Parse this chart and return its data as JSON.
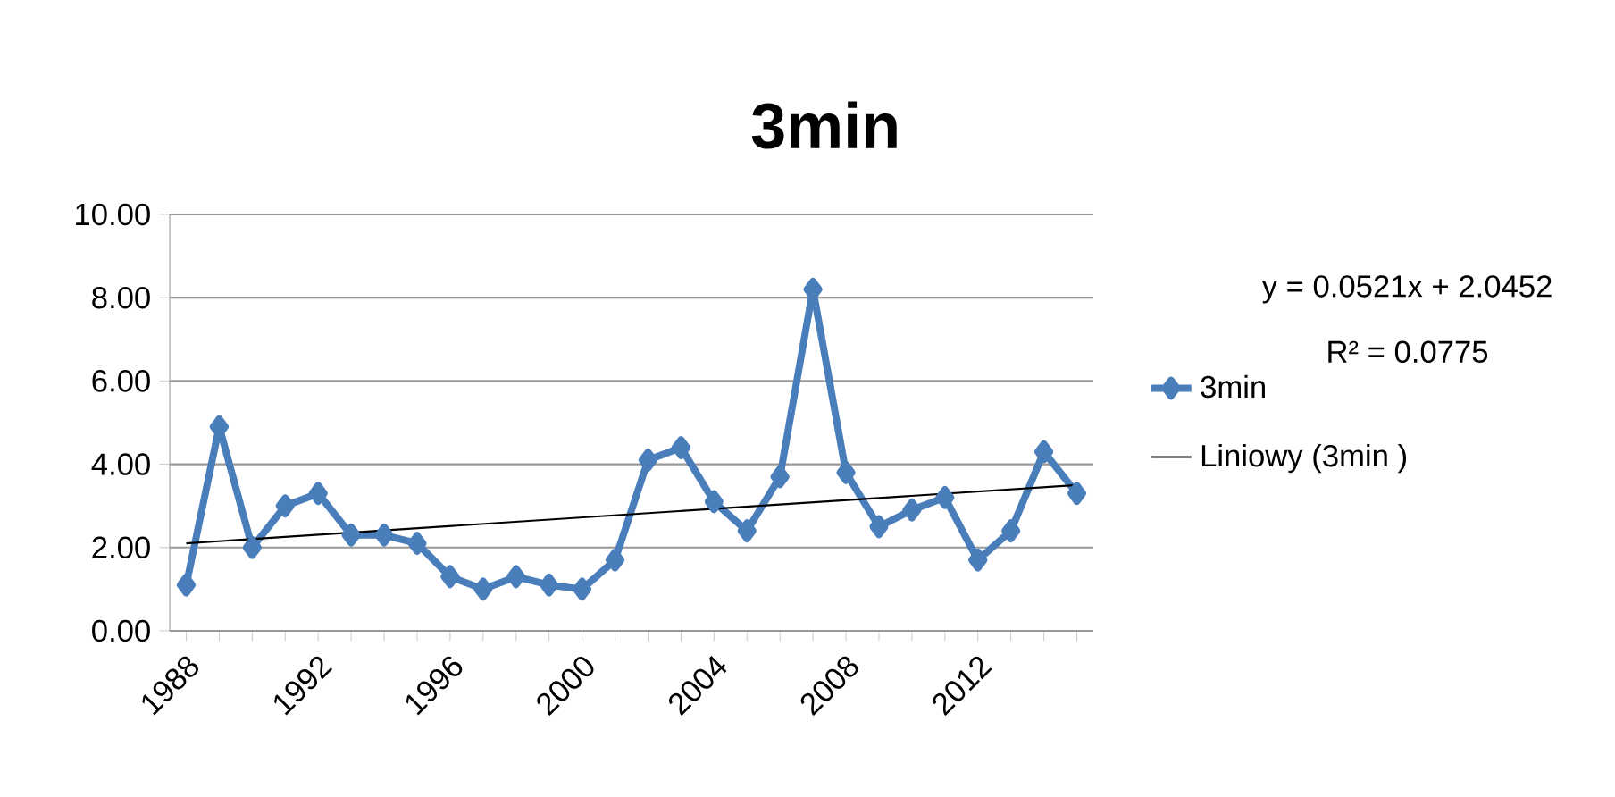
{
  "chart_data": {
    "type": "line",
    "title": "3min",
    "x": [
      1988,
      1989,
      1990,
      1991,
      1992,
      1993,
      1994,
      1995,
      1996,
      1997,
      1998,
      1999,
      2000,
      2001,
      2002,
      2003,
      2004,
      2005,
      2006,
      2007,
      2008,
      2009,
      2010,
      2011,
      2012,
      2013,
      2014,
      2015
    ],
    "series": [
      {
        "name": "3min",
        "color": "#4a7ebb",
        "values": [
          1.1,
          4.9,
          2.0,
          3.0,
          3.3,
          2.3,
          2.3,
          2.1,
          1.3,
          1.0,
          1.3,
          1.1,
          1.0,
          1.7,
          4.1,
          4.4,
          3.1,
          2.4,
          3.7,
          8.2,
          3.8,
          2.5,
          2.9,
          3.2,
          1.7,
          2.4,
          4.3,
          3.3
        ]
      },
      {
        "name": "Liniowy (3min )",
        "color": "#000000",
        "marker": "none",
        "x": [
          1988,
          2015
        ],
        "values": [
          2.1,
          3.5
        ]
      }
    ],
    "xlim": [
      1987.5,
      2015.5
    ],
    "xticks": [
      {
        "value": 1988,
        "label": "1988"
      },
      {
        "value": 1989,
        "label": null
      },
      {
        "value": 1990,
        "label": null
      },
      {
        "value": 1991,
        "label": null
      },
      {
        "value": 1992,
        "label": "1992"
      },
      {
        "value": 1993,
        "label": null
      },
      {
        "value": 1994,
        "label": null
      },
      {
        "value": 1995,
        "label": null
      },
      {
        "value": 1996,
        "label": "1996"
      },
      {
        "value": 1997,
        "label": null
      },
      {
        "value": 1998,
        "label": null
      },
      {
        "value": 1999,
        "label": null
      },
      {
        "value": 2000,
        "label": "2000"
      },
      {
        "value": 2001,
        "label": null
      },
      {
        "value": 2002,
        "label": null
      },
      {
        "value": 2003,
        "label": null
      },
      {
        "value": 2004,
        "label": "2004"
      },
      {
        "value": 2005,
        "label": null
      },
      {
        "value": 2006,
        "label": null
      },
      {
        "value": 2007,
        "label": null
      },
      {
        "value": 2008,
        "label": "2008"
      },
      {
        "value": 2009,
        "label": null
      },
      {
        "value": 2010,
        "label": null
      },
      {
        "value": 2011,
        "label": null
      },
      {
        "value": 2012,
        "label": "2012"
      },
      {
        "value": 2013,
        "label": null
      },
      {
        "value": 2014,
        "label": null
      },
      {
        "value": 2015,
        "label": null
      }
    ],
    "ylim": [
      0,
      10
    ],
    "yticks": [
      {
        "value": 0,
        "label": "0.00"
      },
      {
        "value": 2,
        "label": "2.00"
      },
      {
        "value": 4,
        "label": "4.00"
      },
      {
        "value": 6,
        "label": "6.00"
      },
      {
        "value": 8,
        "label": "8.00"
      },
      {
        "value": 10,
        "label": "10.00"
      }
    ],
    "grid": "y",
    "legend": "right",
    "marker": "diamond",
    "line_style": "solid",
    "annotations": [
      "y = 0.0521x + 2.0452",
      "R² = 0.0775"
    ]
  }
}
